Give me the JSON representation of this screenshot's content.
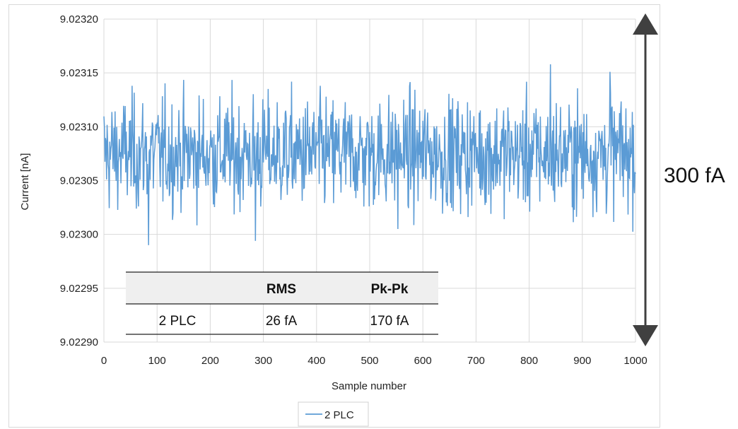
{
  "chart_data": {
    "type": "line",
    "title": "",
    "xlabel": "Sample number",
    "ylabel": "Current [nA]",
    "xlim": [
      0,
      1000
    ],
    "ylim": [
      9.0229,
      9.0232
    ],
    "x_ticks": [
      "0",
      "100",
      "200",
      "300",
      "400",
      "500",
      "600",
      "700",
      "800",
      "900",
      "1000"
    ],
    "y_ticks": [
      "9.02290",
      "9.02295",
      "9.02300",
      "9.02305",
      "9.02310",
      "9.02315",
      "9.02320"
    ],
    "grid": "vertical and horizontal",
    "legend_position": "bottom",
    "series": [
      {
        "name": "2 PLC",
        "color": "#5b9bd5",
        "n_samples": 1000,
        "mean": 9.023075,
        "min": 9.023,
        "max": 9.023158,
        "notable_points": [
          {
            "x": 84,
            "y": 9.02299
          },
          {
            "x": 285,
            "y": 9.022994
          },
          {
            "x": 553,
            "y": 9.023005
          },
          {
            "x": 840,
            "y": 9.023158
          },
          {
            "x": 952,
            "y": 9.023151
          }
        ]
      }
    ],
    "table": {
      "headers": [
        "",
        "RMS",
        "Pk-Pk"
      ],
      "rows": [
        [
          "2 PLC",
          "26 fA",
          "170 fA"
        ]
      ]
    },
    "annotation": "300 fA",
    "annotation_color": "#404040"
  }
}
